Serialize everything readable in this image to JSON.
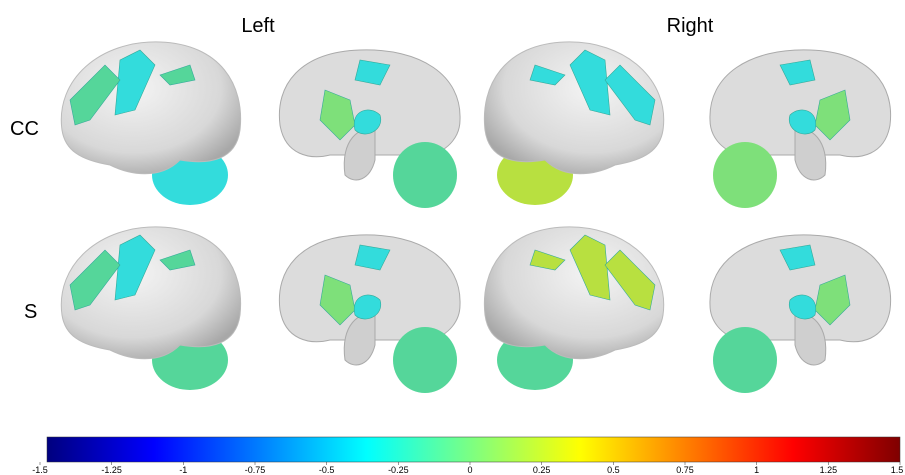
{
  "column_labels": [
    "Left",
    "Right"
  ],
  "row_labels": [
    "CC",
    "S"
  ],
  "colorbar": {
    "colormap": "jet",
    "range": [
      -1.5,
      1.5
    ],
    "ticks": [
      -1.5,
      -1.25,
      -1,
      -0.75,
      -0.5,
      -0.25,
      0,
      0.25,
      0.5,
      0.75,
      1,
      1.25,
      1.5
    ]
  }
}
